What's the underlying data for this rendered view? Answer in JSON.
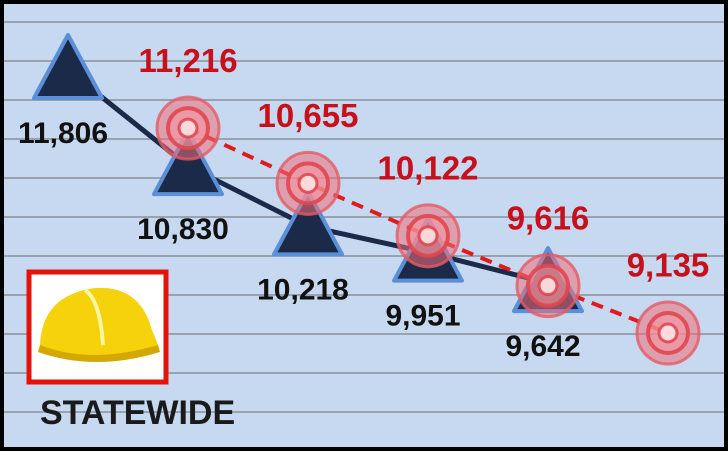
{
  "chart_data": {
    "type": "line",
    "categories": [
      null,
      null,
      null,
      null,
      null,
      null
    ],
    "series": [
      {
        "color": "#1c2a4a",
        "values": [
          11806,
          10830,
          10218,
          9951,
          9642,
          null
        ],
        "value_labels": [
          "11,806",
          "10,830",
          "10,218",
          "9,951",
          "9,642",
          null
        ]
      },
      {
        "color": "#e01b1b",
        "values": [
          null,
          11216,
          10655,
          10122,
          9616,
          9135
        ],
        "value_labels": [
          null,
          "11,216",
          "10,655",
          "10,122",
          "9,616",
          "9,135"
        ]
      }
    ],
    "label": "STATEWIDE"
  }
}
